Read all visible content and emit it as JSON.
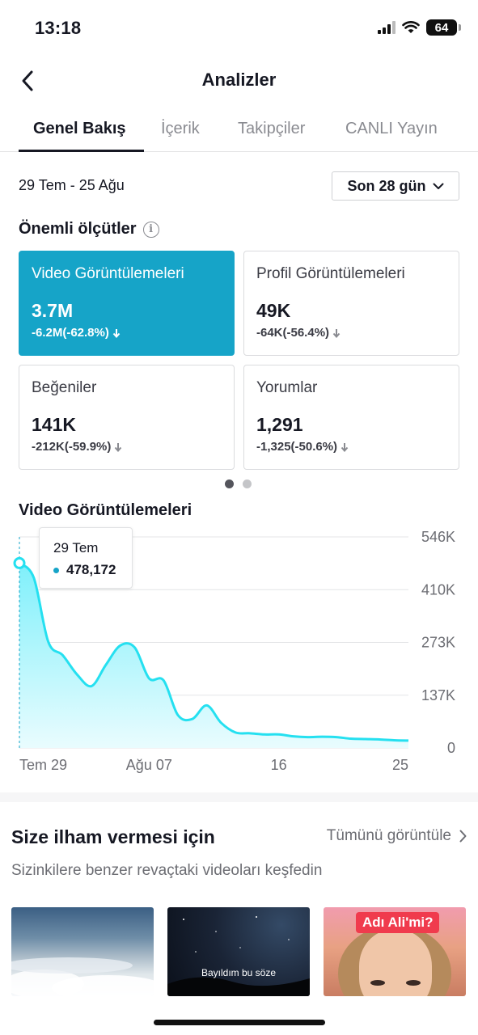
{
  "status_bar": {
    "time": "13:18",
    "battery": "64"
  },
  "header": {
    "title": "Analizler"
  },
  "tabs": [
    {
      "label": "Genel Bakış",
      "active": true
    },
    {
      "label": "İçerik",
      "active": false
    },
    {
      "label": "Takipçiler",
      "active": false
    },
    {
      "label": "CANLI Yayın",
      "active": false
    }
  ],
  "filters": {
    "date_range": "29 Tem - 25 Ağu",
    "period": "Son 28 gün"
  },
  "key_metrics": {
    "title": "Önemli ölçütler",
    "info_glyph": "i",
    "cards": [
      {
        "label": "Video Görüntülemeleri",
        "value": "3.7M",
        "change": "-6.2M(-62.8%)",
        "selected": true
      },
      {
        "label": "Profil Görüntülemeleri",
        "value": "49K",
        "change": "-64K(-56.4%)",
        "selected": false
      },
      {
        "label": "Beğeniler",
        "value": "141K",
        "change": "-212K(-59.9%)",
        "selected": false
      },
      {
        "label": "Yorumlar",
        "value": "1,291",
        "change": "-1,325(-50.6%)",
        "selected": false
      }
    ]
  },
  "chart_data": {
    "type": "area",
    "title": "Video Görüntülemeleri",
    "x_tick_labels": [
      "Tem 29",
      "Ağu 07",
      "16",
      "25"
    ],
    "y_tick_labels": [
      "546K",
      "410K",
      "273K",
      "137K",
      "0"
    ],
    "ylim": [
      0,
      546000
    ],
    "series": [
      {
        "values": [
          478172,
          440000,
          275000,
          240000,
          190000,
          160000,
          215000,
          265000,
          260000,
          180000,
          175000,
          85000,
          75000,
          110000,
          65000,
          40000,
          38000,
          35000,
          35000,
          30000,
          28000,
          29000,
          28000,
          24000,
          23000,
          22000,
          20000,
          19000
        ]
      }
    ],
    "grid": true,
    "tooltip": {
      "date": "29 Tem",
      "value": "478,172"
    },
    "colors": {
      "line": "#25e0f0",
      "fill_top": "#7ff0fb",
      "fill_bottom": "#e9fcfe",
      "accent": "#16a4c8"
    }
  },
  "inspiration": {
    "title": "Size ilham vermesi için",
    "see_all": "Tümünü görüntüle",
    "subtitle": "Sizinkilere benzer revaçtaki videoları keşfedin",
    "videos": [
      {
        "caption": ""
      },
      {
        "caption": "Bayıldım bu söze"
      },
      {
        "caption": "Adı Ali'mi?"
      }
    ]
  }
}
